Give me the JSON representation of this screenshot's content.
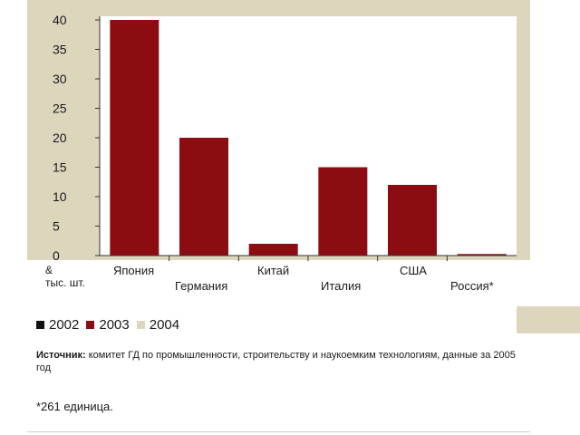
{
  "chart_data": {
    "type": "bar",
    "categories": [
      "Япония",
      "Германия",
      "Китай",
      "Италия",
      "США",
      "Россия*"
    ],
    "series": [
      {
        "name": "2002",
        "color": "#111111",
        "values": [
          null,
          null,
          null,
          null,
          null,
          null
        ]
      },
      {
        "name": "2003",
        "color": "#8b0d12",
        "values": [
          40,
          20,
          2,
          15,
          12,
          0.261
        ]
      },
      {
        "name": "2004",
        "color": "#dcd6bd",
        "values": [
          null,
          null,
          null,
          null,
          null,
          null
        ]
      }
    ],
    "y_ticks": [
      "0",
      "5",
      "10",
      "15",
      "20",
      "25",
      "30",
      "35",
      "40"
    ],
    "ylim": [
      0,
      40
    ],
    "unit_label": [
      "&",
      "тыс. шт."
    ],
    "grid": false,
    "legend_position": "bottom-left"
  },
  "source": {
    "label": "Источник:",
    "text": " комитет ГД по промышленности, строительству и наукоемким технологиям, данные за 2005 год"
  },
  "note": "*261 единица.",
  "colors": {
    "panel": "#dcd6bd",
    "bar": "#8b0d12",
    "axis": "#333333"
  }
}
